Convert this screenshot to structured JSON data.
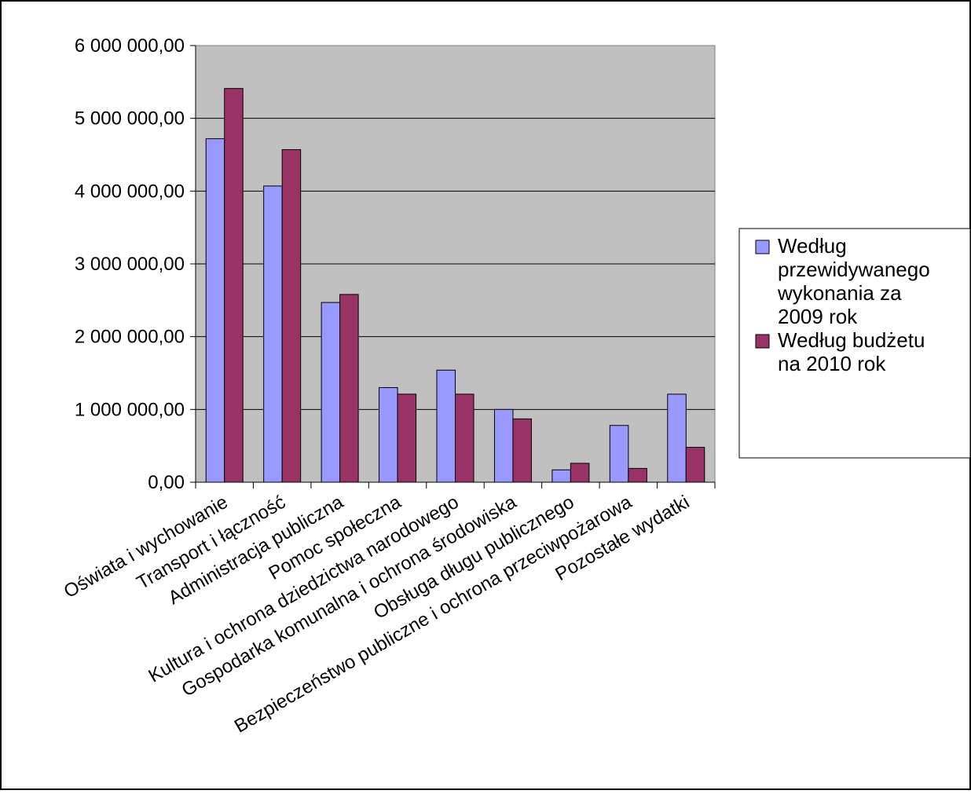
{
  "chart_data": {
    "type": "bar",
    "title": "",
    "xlabel": "",
    "ylabel": "",
    "ylim": [
      0,
      6000000
    ],
    "yticks": [
      0,
      1000000,
      2000000,
      3000000,
      4000000,
      5000000,
      6000000
    ],
    "ytick_labels": [
      "0,00",
      "1 000 000,00",
      "2 000 000,00",
      "3 000 000,00",
      "4 000 000,00",
      "5 000 000,00",
      "6 000 000,00"
    ],
    "grid": true,
    "legend_position": "right",
    "categories": [
      "Oświata i wychowanie",
      "Transport i łączność",
      "Administracja publiczna",
      "Pomoc społeczna",
      "Kultura i ochrona dziedzictwa narodowego",
      "Gospodarka komunalna i ochrona środowiska",
      "Obsługa długu publicznego",
      "Bezpieczeństwo publiczne i ochrona przeciwpożarowa",
      "Pozostałe wydatki"
    ],
    "series": [
      {
        "name": "Według przewidywanego wykonania za 2009 rok",
        "color": "#9999ff",
        "values": [
          4720000,
          4070000,
          2470000,
          1300000,
          1540000,
          1000000,
          170000,
          780000,
          1210000
        ]
      },
      {
        "name": "Według budżetu na 2010 rok",
        "color": "#993366",
        "values": [
          5410000,
          4570000,
          2580000,
          1210000,
          1210000,
          870000,
          260000,
          190000,
          480000
        ]
      }
    ]
  }
}
